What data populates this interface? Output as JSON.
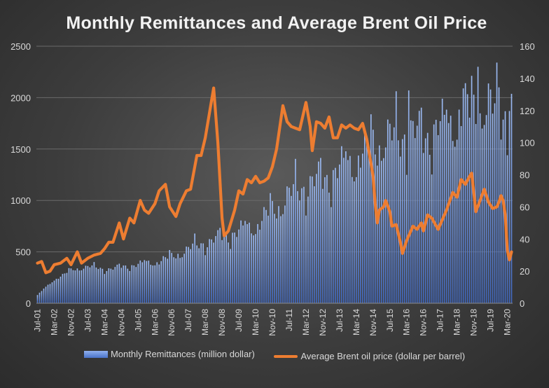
{
  "chart_data": {
    "type": "bar+line",
    "title": "Monthly Remittances and Average Brent Oil Price",
    "y_left": {
      "ylim": [
        0,
        2500
      ],
      "ticks": [
        0,
        500,
        1000,
        1500,
        2000,
        2500
      ]
    },
    "y_right": {
      "ylim": [
        0,
        160
      ],
      "ticks": [
        0,
        20,
        40,
        60,
        80,
        100,
        120,
        140,
        160
      ]
    },
    "x_tick_labels": [
      "Jul-01",
      "Mar-02",
      "Nov-02",
      "Jul-03",
      "Mar-04",
      "Nov-04",
      "Jul-05",
      "Mar-06",
      "Nov-06",
      "Jul-07",
      "Mar-08",
      "Nov-08",
      "Jul-09",
      "Mar-10",
      "Nov-10",
      "Jul-11",
      "Mar-12",
      "Nov-12",
      "Jul-13",
      "Mar-14",
      "Nov-14",
      "Jul-15",
      "Mar-16",
      "Nov-16",
      "Jul-17",
      "Mar-18",
      "Nov-18",
      "Jul-19",
      "Mar-20"
    ],
    "grid": true,
    "legend_position": "bottom",
    "colors": {
      "bars": "#4a73c9",
      "line": "#ed7d31"
    },
    "series": [
      {
        "name": "Monthly Remittances (million dollar)",
        "type": "bar",
        "axis": "left",
        "anchors": [
          [
            "Jul-01",
            80
          ],
          [
            "Mar-02",
            230
          ],
          [
            "Nov-02",
            320
          ],
          [
            "Jul-03",
            360
          ],
          [
            "Mar-04",
            330
          ],
          [
            "Nov-04",
            350
          ],
          [
            "Jul-05",
            380
          ],
          [
            "Mar-06",
            400
          ],
          [
            "Nov-06",
            450
          ],
          [
            "Jul-07",
            530
          ],
          [
            "Mar-08",
            590
          ],
          [
            "Nov-08",
            640
          ],
          [
            "Jul-09",
            700
          ],
          [
            "Mar-10",
            760
          ],
          [
            "Nov-10",
            900
          ],
          [
            "Jul-11",
            1050
          ],
          [
            "Mar-12",
            1150
          ],
          [
            "Nov-12",
            1200
          ],
          [
            "Jul-13",
            1300
          ],
          [
            "Mar-14",
            1400
          ],
          [
            "Nov-14",
            1550
          ],
          [
            "Jul-15",
            1600
          ],
          [
            "Mar-16",
            1650
          ],
          [
            "Nov-16",
            1620
          ],
          [
            "Jul-17",
            1700
          ],
          [
            "Mar-18",
            1800
          ],
          [
            "Nov-18",
            1900
          ],
          [
            "Jul-19",
            1880
          ],
          [
            "Mar-20",
            1850
          ]
        ],
        "peaks": [
          [
            "Jan-19",
            2300
          ],
          [
            "Nov-19",
            2100
          ],
          [
            "Jun-18",
            2090
          ],
          [
            "Apr-16",
            2070
          ],
          [
            "Apr-20",
            1870
          ]
        ]
      },
      {
        "name": "Average Brent oil price (dollar per barrel)",
        "type": "line",
        "axis": "right",
        "points": [
          [
            "Jul-01",
            25
          ],
          [
            "Sep-01",
            26
          ],
          [
            "Nov-01",
            19
          ],
          [
            "Jan-02",
            20
          ],
          [
            "Mar-02",
            24
          ],
          [
            "Jun-02",
            25
          ],
          [
            "Sep-02",
            28
          ],
          [
            "Nov-02",
            24
          ],
          [
            "Feb-03",
            32
          ],
          [
            "Apr-03",
            25
          ],
          [
            "Jul-03",
            28
          ],
          [
            "Oct-03",
            30
          ],
          [
            "Jan-04",
            31
          ],
          [
            "Mar-04",
            34
          ],
          [
            "May-04",
            38
          ],
          [
            "Jul-04",
            38
          ],
          [
            "Oct-04",
            50
          ],
          [
            "Dec-04",
            40
          ],
          [
            "Mar-05",
            53
          ],
          [
            "May-05",
            50
          ],
          [
            "Aug-05",
            64
          ],
          [
            "Oct-05",
            58
          ],
          [
            "Dec-05",
            56
          ],
          [
            "Mar-06",
            62
          ],
          [
            "May-06",
            70
          ],
          [
            "Aug-06",
            74
          ],
          [
            "Oct-06",
            60
          ],
          [
            "Jan-07",
            54
          ],
          [
            "Mar-07",
            62
          ],
          [
            "Jun-07",
            70
          ],
          [
            "Aug-07",
            71
          ],
          [
            "Nov-07",
            92
          ],
          [
            "Jan-08",
            92
          ],
          [
            "Mar-08",
            103
          ],
          [
            "Jul-08",
            134
          ],
          [
            "Sep-08",
            100
          ],
          [
            "Nov-08",
            53
          ],
          [
            "Dec-08",
            42
          ],
          [
            "Feb-09",
            45
          ],
          [
            "May-09",
            58
          ],
          [
            "Jul-09",
            70
          ],
          [
            "Sep-09",
            68
          ],
          [
            "Nov-09",
            77
          ],
          [
            "Jan-10",
            75
          ],
          [
            "Mar-10",
            79
          ],
          [
            "May-10",
            75
          ],
          [
            "Jul-10",
            76
          ],
          [
            "Sep-10",
            78
          ],
          [
            "Nov-10",
            85
          ],
          [
            "Jan-11",
            96
          ],
          [
            "Apr-11",
            123
          ],
          [
            "Jun-11",
            113
          ],
          [
            "Aug-11",
            110
          ],
          [
            "Oct-11",
            109
          ],
          [
            "Dec-11",
            108
          ],
          [
            "Mar-12",
            125
          ],
          [
            "May-12",
            110
          ],
          [
            "Jun-12",
            95
          ],
          [
            "Aug-12",
            113
          ],
          [
            "Oct-12",
            112
          ],
          [
            "Dec-12",
            109
          ],
          [
            "Feb-13",
            116
          ],
          [
            "Apr-13",
            103
          ],
          [
            "Jun-13",
            103
          ],
          [
            "Aug-13",
            111
          ],
          [
            "Oct-13",
            109
          ],
          [
            "Dec-13",
            111
          ],
          [
            "Feb-14",
            109
          ],
          [
            "Apr-14",
            108
          ],
          [
            "Jun-14",
            112
          ],
          [
            "Aug-14",
            102
          ],
          [
            "Oct-14",
            87
          ],
          [
            "Nov-14",
            79
          ],
          [
            "Dec-14",
            62
          ],
          [
            "Jan-15",
            50
          ],
          [
            "Feb-15",
            58
          ],
          [
            "Apr-15",
            60
          ],
          [
            "May-15",
            64
          ],
          [
            "Jul-15",
            57
          ],
          [
            "Aug-15",
            48
          ],
          [
            "Oct-15",
            49
          ],
          [
            "Dec-15",
            38
          ],
          [
            "Jan-16",
            31
          ],
          [
            "Mar-16",
            39
          ],
          [
            "Jun-16",
            48
          ],
          [
            "Aug-16",
            46
          ],
          [
            "Oct-16",
            50
          ],
          [
            "Nov-16",
            45
          ],
          [
            "Jan-17",
            55
          ],
          [
            "Mar-17",
            53
          ],
          [
            "Jun-17",
            46
          ],
          [
            "Aug-17",
            52
          ],
          [
            "Oct-17",
            58
          ],
          [
            "Jan-18",
            69
          ],
          [
            "Mar-18",
            66
          ],
          [
            "May-18",
            77
          ],
          [
            "Jul-18",
            74
          ],
          [
            "Sep-18",
            79
          ],
          [
            "Oct-18",
            81
          ],
          [
            "Dec-18",
            57
          ],
          [
            "Feb-19",
            64
          ],
          [
            "Apr-19",
            71
          ],
          [
            "Jun-19",
            63
          ],
          [
            "Aug-19",
            59
          ],
          [
            "Oct-19",
            60
          ],
          [
            "Nov-19",
            63
          ],
          [
            "Dec-19",
            67
          ],
          [
            "Jan-20",
            64
          ],
          [
            "Feb-20",
            55
          ],
          [
            "Mar-20",
            33
          ],
          [
            "Apr-20",
            27
          ],
          [
            "May-20",
            32
          ]
        ]
      }
    ]
  }
}
